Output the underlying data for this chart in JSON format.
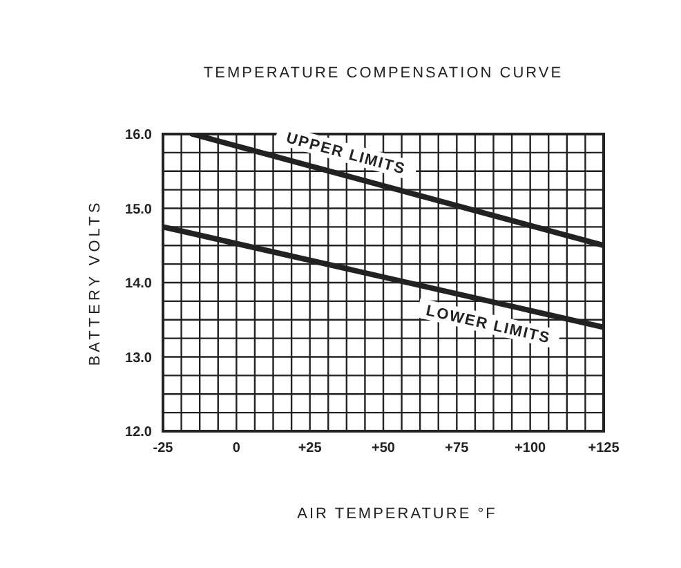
{
  "chart_data": {
    "type": "line",
    "title": "TEMPERATURE COMPENSATION CURVE",
    "xlabel": "AIR TEMPERATURE °F",
    "ylabel": "BATTERY VOLTS",
    "x": [
      -25,
      125
    ],
    "series": [
      {
        "name": "UPPER LIMITS",
        "color": "#222222",
        "x": [
          -15,
          125
        ],
        "values": [
          16.0,
          14.5
        ]
      },
      {
        "name": "LOWER LIMITS",
        "color": "#222222",
        "values": [
          14.75,
          13.4
        ]
      }
    ],
    "xlim": [
      -25,
      125
    ],
    "xticks": [
      -25,
      {
        "value": -18.75,
        "label": null
      },
      {
        "value": -12.5,
        "label": null
      },
      {
        "value": -6.25,
        "label": null
      },
      0,
      {
        "value": 6.25,
        "label": null
      },
      {
        "value": 12.5,
        "label": null
      },
      {
        "value": 18.75,
        "label": null
      },
      {
        "value": 25,
        "label": "+25"
      },
      {
        "value": 31.25,
        "label": null
      },
      {
        "value": 37.5,
        "label": null
      },
      {
        "value": 43.75,
        "label": null
      },
      {
        "value": 50,
        "label": "+50"
      },
      {
        "value": 56.25,
        "label": null
      },
      {
        "value": 62.5,
        "label": null
      },
      {
        "value": 68.75,
        "label": null
      },
      {
        "value": 75,
        "label": "+75"
      },
      {
        "value": 81.25,
        "label": null
      },
      {
        "value": 87.5,
        "label": null
      },
      {
        "value": 93.75,
        "label": null
      },
      {
        "value": 100,
        "label": "+100"
      },
      {
        "value": 106.25,
        "label": null
      },
      {
        "value": 112.5,
        "label": null
      },
      {
        "value": 118.75,
        "label": null
      },
      {
        "value": 125,
        "label": "+125"
      }
    ],
    "ylim": [
      12,
      16
    ],
    "yticks": [
      {
        "value": 12,
        "label": "12.0"
      },
      {
        "value": 12.25,
        "label": null
      },
      {
        "value": 12.5,
        "label": null
      },
      {
        "value": 12.75,
        "label": null
      },
      {
        "value": 13,
        "label": "13.0"
      },
      {
        "value": 13.25,
        "label": null
      },
      {
        "value": 13.5,
        "label": null
      },
      {
        "value": 13.75,
        "label": null
      },
      {
        "value": 14,
        "label": "14.0"
      },
      {
        "value": 14.25,
        "label": null
      },
      {
        "value": 14.5,
        "label": null
      },
      {
        "value": 14.75,
        "label": null
      },
      {
        "value": 15,
        "label": "15.0"
      },
      {
        "value": 15.25,
        "label": null
      },
      {
        "value": 15.5,
        "label": null
      },
      {
        "value": 15.75,
        "label": null
      },
      {
        "value": 16,
        "label": "16.0"
      }
    ],
    "grid": true,
    "marker": "none",
    "line_style": "solid"
  }
}
